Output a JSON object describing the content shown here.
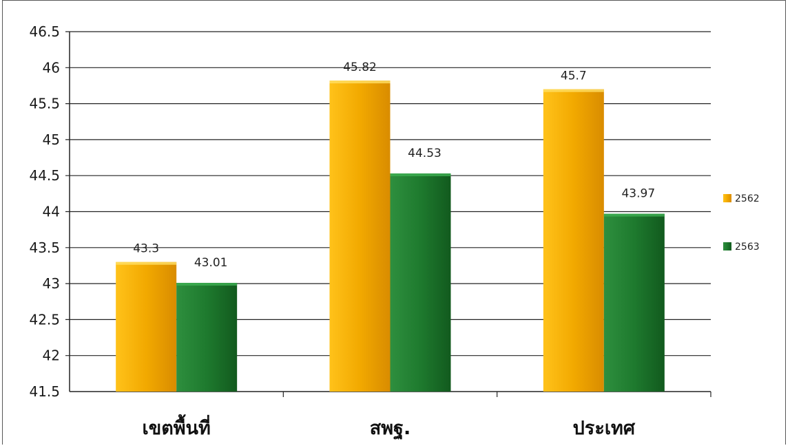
{
  "chart_data": {
    "type": "bar",
    "categories": [
      "เขตพื้นที่",
      "สพฐ.",
      "ประเทศ"
    ],
    "series": [
      {
        "name": "2562",
        "values": [
          43.3,
          45.82,
          45.7
        ],
        "color": "#F2A900"
      },
      {
        "name": "2563",
        "values": [
          43.01,
          44.53,
          43.97
        ],
        "color": "#1E7A2E"
      }
    ],
    "data_labels": [
      [
        "43.3",
        "45.82",
        "45.7"
      ],
      [
        "43.01",
        "44.53",
        "43.97"
      ]
    ],
    "yticks": [
      "41.5",
      "42",
      "42.5",
      "43",
      "43.5",
      "44",
      "44.5",
      "45",
      "45.5",
      "46",
      "46.5"
    ],
    "ylim": [
      41.5,
      46.5
    ],
    "grid": true,
    "legend_position": "right",
    "title": "",
    "xlabel": "",
    "ylabel": ""
  }
}
